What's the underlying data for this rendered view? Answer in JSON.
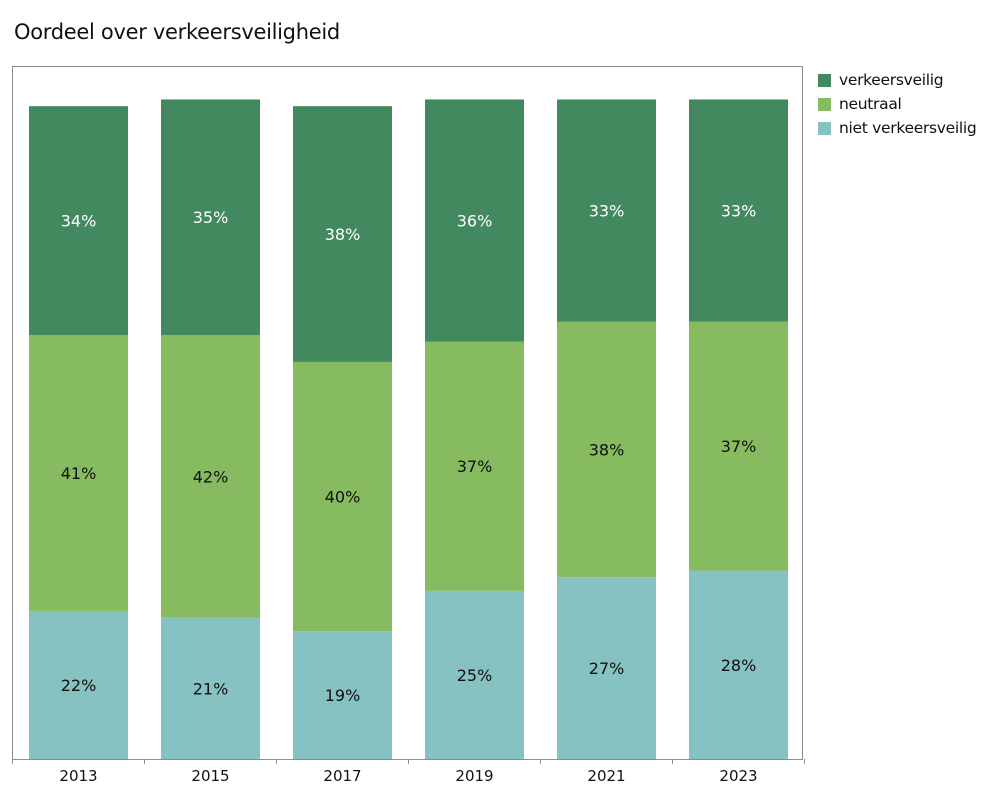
{
  "title": "Oordeel over verkeersveiligheid",
  "chart_data": {
    "type": "bar",
    "stacked": true,
    "title": "Oordeel over verkeersveiligheid",
    "xlabel": "",
    "ylabel": "",
    "ylim": [
      0,
      100
    ],
    "grid": false,
    "legend_position": "top-right",
    "categories": [
      "2013",
      "2015",
      "2017",
      "2019",
      "2021",
      "2023"
    ],
    "series": [
      {
        "name": "niet verkeersveilig",
        "color": "#85c2c1",
        "label_color": "#111111",
        "values": [
          22,
          21,
          19,
          25,
          27,
          28
        ]
      },
      {
        "name": "neutraal",
        "color": "#86bb5f",
        "label_color": "#111111",
        "values": [
          41,
          42,
          40,
          37,
          38,
          37
        ]
      },
      {
        "name": "verkeersveilig",
        "color": "#438960",
        "label_color": "#ffffff",
        "values": [
          34,
          35,
          38,
          36,
          33,
          33
        ]
      }
    ],
    "value_suffix": "%"
  },
  "legend": [
    {
      "label": "verkeersveilig",
      "color": "#438960"
    },
    {
      "label": "neutraal",
      "color": "#86bb5f"
    },
    {
      "label": "niet verkeersveilig",
      "color": "#85c2c1"
    }
  ]
}
